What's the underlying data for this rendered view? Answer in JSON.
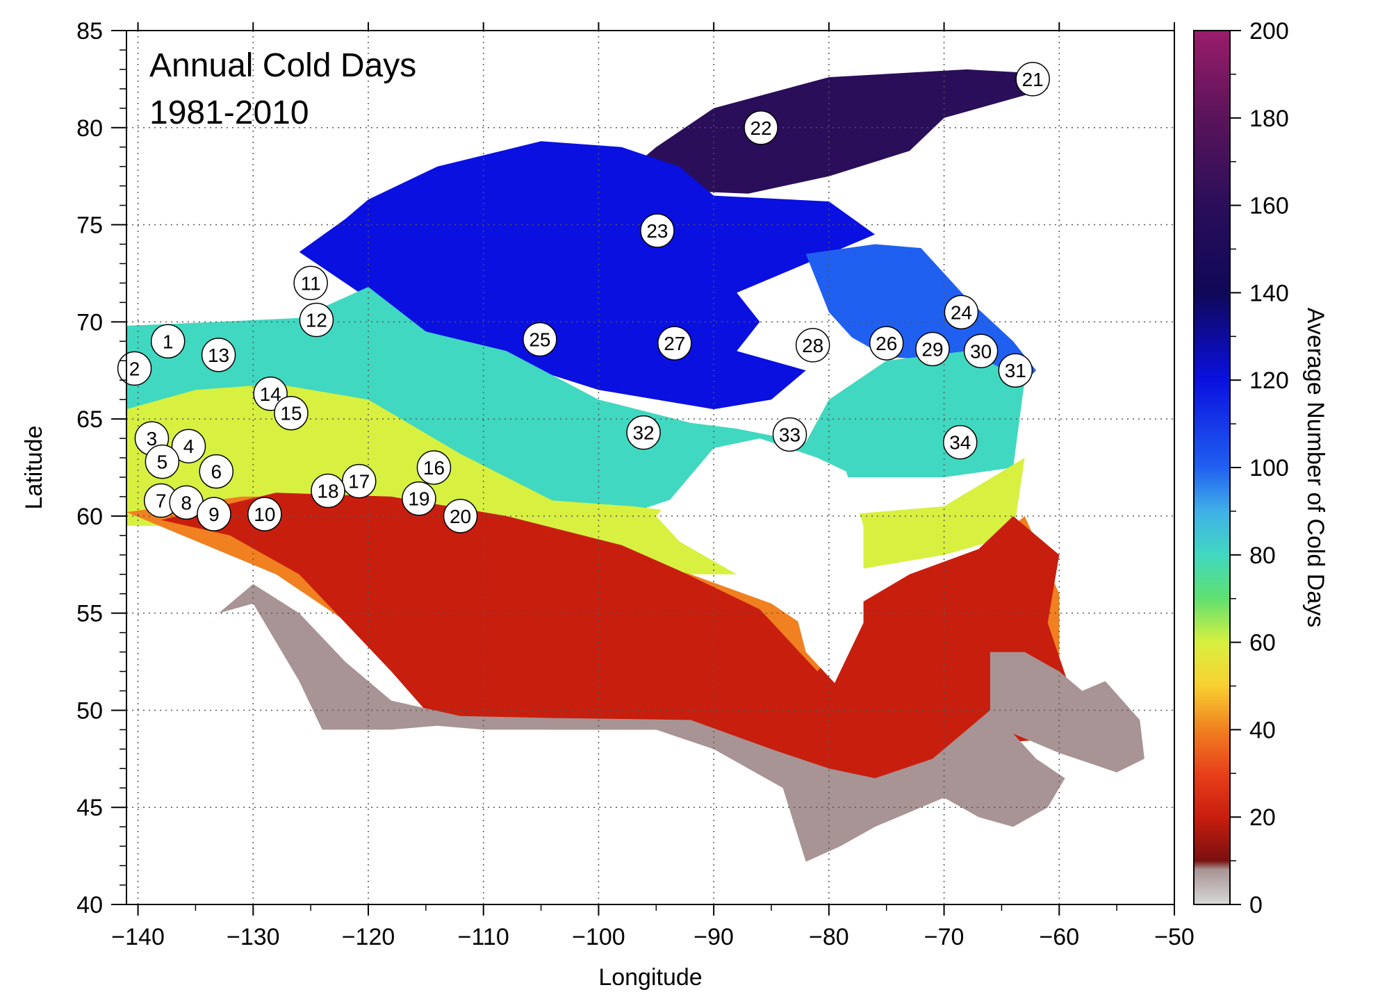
{
  "chart_data": {
    "type": "heatmap",
    "title_lines": [
      "Annual Cold Days",
      "1981-2010"
    ],
    "xlabel": "Longitude",
    "ylabel": "Latitude",
    "xlim": [
      -141,
      -50
    ],
    "ylim": [
      40,
      85
    ],
    "xticks": [
      -140,
      -130,
      -120,
      -110,
      -100,
      -90,
      -80,
      -70,
      -60,
      -50
    ],
    "yticks": [
      40,
      45,
      50,
      55,
      60,
      65,
      70,
      75,
      80,
      85
    ],
    "xtick_labels": [
      "−140",
      "−130",
      "−120",
      "−110",
      "−100",
      "−90",
      "−80",
      "−70",
      "−60",
      "−50"
    ],
    "ytick_labels": [
      "40",
      "45",
      "50",
      "55",
      "60",
      "65",
      "70",
      "75",
      "80",
      "85"
    ],
    "grid": true,
    "colorbar": {
      "label": "Average Number of Cold Days",
      "range": [
        0,
        200
      ],
      "ticks": [
        0,
        20,
        40,
        60,
        80,
        100,
        120,
        140,
        160,
        180,
        200
      ],
      "tick_labels": [
        "0",
        "20",
        "40",
        "60",
        "80",
        "100",
        "120",
        "140",
        "160",
        "180",
        "200"
      ],
      "stops": [
        {
          "v": 0,
          "c": "#d8d8d8"
        },
        {
          "v": 8,
          "c": "#a89494"
        },
        {
          "v": 10,
          "c": "#7a1010"
        },
        {
          "v": 20,
          "c": "#c81e0e"
        },
        {
          "v": 30,
          "c": "#e8401a"
        },
        {
          "v": 40,
          "c": "#f08020"
        },
        {
          "v": 50,
          "c": "#f8d030"
        },
        {
          "v": 60,
          "c": "#d8f040"
        },
        {
          "v": 70,
          "c": "#60e070"
        },
        {
          "v": 80,
          "c": "#40d8c0"
        },
        {
          "v": 90,
          "c": "#40b0e8"
        },
        {
          "v": 100,
          "c": "#2060f0"
        },
        {
          "v": 120,
          "c": "#0a10e0"
        },
        {
          "v": 140,
          "c": "#100858"
        },
        {
          "v": 160,
          "c": "#2a0e5a"
        },
        {
          "v": 180,
          "c": "#5a145a"
        },
        {
          "v": 200,
          "c": "#9a1c6a"
        }
      ]
    },
    "stations": [
      {
        "id": "1",
        "lon": -137.4,
        "lat": 69.0
      },
      {
        "id": "2",
        "lon": -140.3,
        "lat": 67.6
      },
      {
        "id": "3",
        "lon": -138.8,
        "lat": 64.0
      },
      {
        "id": "4",
        "lon": -135.6,
        "lat": 63.6
      },
      {
        "id": "5",
        "lon": -137.9,
        "lat": 62.8
      },
      {
        "id": "6",
        "lon": -133.2,
        "lat": 62.3
      },
      {
        "id": "7",
        "lon": -138.0,
        "lat": 60.8
      },
      {
        "id": "8",
        "lon": -135.8,
        "lat": 60.7
      },
      {
        "id": "9",
        "lon": -133.4,
        "lat": 60.1
      },
      {
        "id": "10",
        "lon": -129.0,
        "lat": 60.1
      },
      {
        "id": "11",
        "lon": -125.0,
        "lat": 72.0
      },
      {
        "id": "12",
        "lon": -124.5,
        "lat": 70.1
      },
      {
        "id": "13",
        "lon": -133.0,
        "lat": 68.3
      },
      {
        "id": "14",
        "lon": -128.5,
        "lat": 66.3
      },
      {
        "id": "15",
        "lon": -126.7,
        "lat": 65.3
      },
      {
        "id": "16",
        "lon": -114.3,
        "lat": 62.5
      },
      {
        "id": "17",
        "lon": -120.8,
        "lat": 61.8
      },
      {
        "id": "18",
        "lon": -123.5,
        "lat": 61.3
      },
      {
        "id": "19",
        "lon": -115.6,
        "lat": 60.9
      },
      {
        "id": "20",
        "lon": -112.0,
        "lat": 60.0
      },
      {
        "id": "21",
        "lon": -62.3,
        "lat": 82.5
      },
      {
        "id": "22",
        "lon": -85.9,
        "lat": 80.0
      },
      {
        "id": "23",
        "lon": -94.9,
        "lat": 74.7
      },
      {
        "id": "24",
        "lon": -68.5,
        "lat": 70.5
      },
      {
        "id": "25",
        "lon": -105.1,
        "lat": 69.1
      },
      {
        "id": "26",
        "lon": -75.0,
        "lat": 68.9
      },
      {
        "id": "27",
        "lon": -93.4,
        "lat": 68.9
      },
      {
        "id": "28",
        "lon": -81.4,
        "lat": 68.8
      },
      {
        "id": "29",
        "lon": -71.0,
        "lat": 68.6
      },
      {
        "id": "30",
        "lon": -66.8,
        "lat": 68.5
      },
      {
        "id": "31",
        "lon": -63.8,
        "lat": 67.5
      },
      {
        "id": "32",
        "lon": -96.1,
        "lat": 64.3
      },
      {
        "id": "33",
        "lon": -83.4,
        "lat": 64.2
      },
      {
        "id": "34",
        "lon": -68.6,
        "lat": 63.8
      }
    ],
    "regions": [
      {
        "name": "high-arctic",
        "value": 150,
        "points": [
          [
            -95,
            79
          ],
          [
            -90,
            81
          ],
          [
            -80,
            82.6
          ],
          [
            -68,
            83
          ],
          [
            -62,
            82.8
          ],
          [
            -61,
            82
          ],
          [
            -70,
            80.5
          ],
          [
            -73,
            78.8
          ],
          [
            -80,
            77.5
          ],
          [
            -87,
            76.6
          ],
          [
            -95,
            76.8
          ],
          [
            -97,
            78
          ]
        ]
      },
      {
        "name": "arctic-islands",
        "value": 115,
        "points": [
          [
            -120,
            76.3
          ],
          [
            -114,
            78
          ],
          [
            -105,
            79.3
          ],
          [
            -98,
            79
          ],
          [
            -93,
            78
          ],
          [
            -90,
            76.5
          ],
          [
            -80,
            76.2
          ],
          [
            -76,
            74.5
          ],
          [
            -82,
            73
          ],
          [
            -88,
            71.5
          ],
          [
            -86,
            70
          ],
          [
            -88,
            68.5
          ],
          [
            -82,
            67.5
          ],
          [
            -85,
            66
          ],
          [
            -90,
            65.5
          ],
          [
            -100,
            66.5
          ],
          [
            -108,
            68
          ],
          [
            -115,
            69.5
          ],
          [
            -121,
            71.6
          ],
          [
            -126,
            73.6
          ],
          [
            -122,
            75.3
          ]
        ]
      },
      {
        "name": "baffin",
        "value": 108,
        "points": [
          [
            -82,
            73.5
          ],
          [
            -76,
            74
          ],
          [
            -72,
            73.8
          ],
          [
            -68,
            71.2
          ],
          [
            -64,
            69
          ],
          [
            -62,
            67.5
          ],
          [
            -64,
            66.3
          ],
          [
            -67,
            66.6
          ],
          [
            -70,
            68
          ],
          [
            -75,
            68.2
          ],
          [
            -78,
            69.2
          ],
          [
            -80,
            70.5
          ]
        ]
      },
      {
        "name": "band-75",
        "value": 75,
        "points": [
          [
            -141,
            69.8
          ],
          [
            -133,
            70
          ],
          [
            -126,
            70.2
          ],
          [
            -120,
            71.8
          ],
          [
            -115,
            69.5
          ],
          [
            -108,
            68.5
          ],
          [
            -100,
            66
          ],
          [
            -92,
            64.8
          ],
          [
            -88,
            64.5
          ],
          [
            -82,
            63.8
          ],
          [
            -80,
            66
          ],
          [
            -75,
            68
          ],
          [
            -68,
            68.5
          ],
          [
            -63,
            67
          ],
          [
            -64,
            62.5
          ],
          [
            -70,
            62
          ],
          [
            -78,
            62
          ],
          [
            -88,
            62
          ],
          [
            -98,
            60
          ],
          [
            -108,
            60
          ],
          [
            -120,
            62
          ],
          [
            -131,
            63.5
          ],
          [
            -141,
            63.8
          ]
        ]
      },
      {
        "name": "band-55",
        "value": 55,
        "points": [
          [
            -141,
            65.5
          ],
          [
            -135,
            66.5
          ],
          [
            -128,
            66.8
          ],
          [
            -120,
            66
          ],
          [
            -112,
            63.2
          ],
          [
            -104,
            60.8
          ],
          [
            -97,
            60.5
          ],
          [
            -90,
            60
          ],
          [
            -80,
            60
          ],
          [
            -70,
            60.5
          ],
          [
            -63,
            63
          ],
          [
            -64,
            59
          ],
          [
            -70,
            58
          ],
          [
            -80,
            57
          ],
          [
            -92,
            57
          ],
          [
            -100,
            58
          ],
          [
            -110,
            59
          ],
          [
            -125,
            59.5
          ],
          [
            -141,
            59.5
          ]
        ]
      },
      {
        "name": "band-38",
        "value": 38,
        "points": [
          [
            -141,
            60.2
          ],
          [
            -131,
            61
          ],
          [
            -124,
            61
          ],
          [
            -117,
            60.8
          ],
          [
            -110,
            59.8
          ],
          [
            -104,
            58.5
          ],
          [
            -97,
            57.8
          ],
          [
            -92,
            57
          ],
          [
            -85,
            55.5
          ],
          [
            -80,
            53.5
          ],
          [
            -74,
            56
          ],
          [
            -67,
            58
          ],
          [
            -63,
            60
          ],
          [
            -60,
            56
          ],
          [
            -60,
            52
          ],
          [
            -68,
            52
          ],
          [
            -75,
            51
          ],
          [
            -82,
            50
          ],
          [
            -92,
            50
          ],
          [
            -105,
            50
          ],
          [
            -118,
            53
          ],
          [
            -128,
            57
          ]
        ]
      },
      {
        "name": "band-22",
        "value": 22,
        "points": [
          [
            -138,
            59.8
          ],
          [
            -132,
            59
          ],
          [
            -126,
            57
          ],
          [
            -122,
            54.5
          ],
          [
            -118,
            52
          ],
          [
            -114,
            49.3
          ],
          [
            -104,
            49
          ],
          [
            -95,
            49
          ],
          [
            -90,
            48.2
          ],
          [
            -84,
            47.3
          ],
          [
            -80,
            46.6
          ],
          [
            -76,
            46
          ],
          [
            -71,
            47
          ],
          [
            -66,
            48.3
          ],
          [
            -61,
            48.5
          ],
          [
            -59,
            51
          ],
          [
            -61,
            54.5
          ],
          [
            -60,
            58
          ],
          [
            -64,
            60
          ],
          [
            -67,
            58.3
          ],
          [
            -73,
            57
          ],
          [
            -77,
            55.6
          ],
          [
            -79,
            53.5
          ],
          [
            -81,
            52
          ],
          [
            -86,
            55.2
          ],
          [
            -93,
            57.2
          ],
          [
            -98,
            58.5
          ],
          [
            -108,
            60
          ],
          [
            -118,
            61
          ],
          [
            -128,
            61.2
          ]
        ]
      },
      {
        "name": "mild-south",
        "value": 4,
        "points": [
          [
            -133,
            55
          ],
          [
            -130,
            55.5
          ],
          [
            -126,
            51.5
          ],
          [
            -124,
            49
          ],
          [
            -122,
            49
          ],
          [
            -118,
            49
          ],
          [
            -114,
            49.2
          ],
          [
            -110,
            49
          ],
          [
            -95,
            49
          ],
          [
            -90,
            48
          ],
          [
            -84,
            46
          ],
          [
            -82,
            42.2
          ],
          [
            -79,
            43
          ],
          [
            -76,
            44
          ],
          [
            -72,
            45
          ],
          [
            -70,
            45.5
          ],
          [
            -67,
            44.5
          ],
          [
            -64,
            44
          ],
          [
            -61,
            45
          ],
          [
            -59.5,
            46.5
          ],
          [
            -62,
            47.5
          ],
          [
            -64,
            48.8
          ],
          [
            -60,
            47.8
          ],
          [
            -55,
            46.8
          ],
          [
            -52.6,
            47.5
          ],
          [
            -53,
            49.5
          ],
          [
            -56,
            51.5
          ],
          [
            -58,
            51
          ],
          [
            -60,
            52
          ],
          [
            -63,
            53
          ],
          [
            -66,
            53
          ],
          [
            -66,
            50
          ],
          [
            -71,
            47.5
          ],
          [
            -76,
            46.5
          ],
          [
            -80,
            47
          ],
          [
            -85,
            48
          ],
          [
            -92,
            49.5
          ],
          [
            -104,
            49.6
          ],
          [
            -112,
            49.7
          ],
          [
            -118,
            50.5
          ],
          [
            -122,
            52.5
          ],
          [
            -126,
            55
          ],
          [
            -130,
            56.5
          ]
        ]
      },
      {
        "name": "hudson-bay",
        "value": null,
        "points": [
          [
            -95,
            60
          ],
          [
            -93,
            58.7
          ],
          [
            -88,
            57
          ],
          [
            -83,
            55.3
          ],
          [
            -82,
            53
          ],
          [
            -79.5,
            51.4
          ],
          [
            -77,
            54.5
          ],
          [
            -77,
            59.5
          ],
          [
            -78.5,
            62.3
          ],
          [
            -81,
            63
          ],
          [
            -86,
            64
          ],
          [
            -90,
            63.5
          ]
        ]
      }
    ]
  }
}
